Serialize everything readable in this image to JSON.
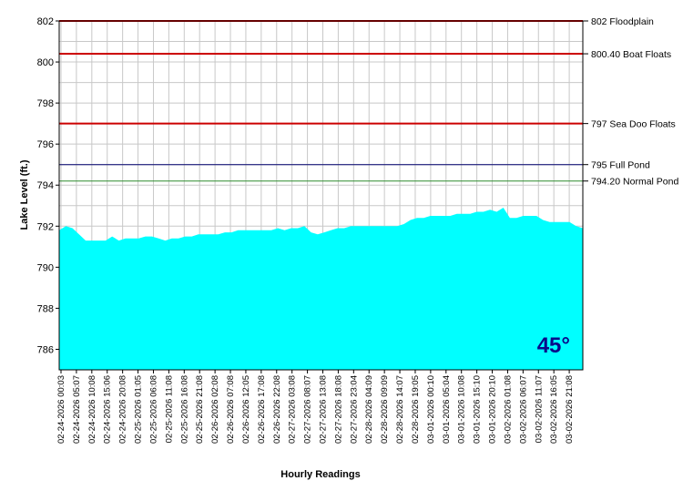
{
  "chart_data": {
    "type": "area",
    "xlabel": "Hourly Readings",
    "ylabel": "Lake Level (ft.)",
    "ylim": [
      785,
      802
    ],
    "yticks": [
      786,
      788,
      790,
      792,
      794,
      796,
      798,
      800,
      802
    ],
    "grid": true,
    "x_tick_labels": [
      "02-24-2026 00:03",
      "02-24-2026 05:07",
      "02-24-2026 10:08",
      "02-24-2026 15:06",
      "02-24-2026 20:08",
      "02-25-2026 01:05",
      "02-25-2026 06:08",
      "02-25-2026 11:08",
      "02-25-2026 16:08",
      "02-25-2026 21:08",
      "02-26-2026 02:08",
      "02-26-2026 07:08",
      "02-26-2026 12:05",
      "02-26-2026 17:08",
      "02-26-2026 22:08",
      "02-27-2026 03:08",
      "02-27-2026 08:07",
      "02-27-2026 13:08",
      "02-27-2026 18:08",
      "02-27-2026 23:04",
      "02-28-2026 04:09",
      "02-28-2026 09:09",
      "02-28-2026 14:07",
      "02-28-2026 19:05",
      "03-01-2026 00:10",
      "03-01-2026 05:04",
      "03-01-2026 10:08",
      "03-01-2026 15:10",
      "03-01-2026 20:10",
      "03-02-2026 01:08",
      "03-02-2026 06:07",
      "03-02-2026 11:07",
      "03-02-2026 16:05",
      "03-02-2026 21:08"
    ],
    "series": [
      {
        "values": [
          791.8,
          792.0,
          791.9,
          791.6,
          791.3,
          791.3,
          791.3,
          791.3,
          791.5,
          791.3,
          791.4,
          791.4,
          791.4,
          791.5,
          791.5,
          791.4,
          791.3,
          791.4,
          791.4,
          791.5,
          791.5,
          791.6,
          791.6,
          791.6,
          791.6,
          791.7,
          791.7,
          791.8,
          791.8,
          791.8,
          791.8,
          791.8,
          791.8,
          791.9,
          791.8,
          791.9,
          791.9,
          792.0,
          791.7,
          791.6,
          791.7,
          791.8,
          791.9,
          791.9,
          792.0,
          792.0,
          792.0,
          792.0,
          792.0,
          792.0,
          792.0,
          792.0,
          792.1,
          792.3,
          792.4,
          792.4,
          792.5,
          792.5,
          792.5,
          792.5,
          792.6,
          792.6,
          792.6,
          792.7,
          792.7,
          792.8,
          792.7,
          792.9,
          792.4,
          792.4,
          792.5,
          792.5,
          792.5,
          792.3,
          792.2,
          792.2,
          792.2,
          792.2,
          792.0,
          791.9
        ]
      }
    ],
    "reference_lines": [
      {
        "label": "802 Floodplain",
        "value": 802,
        "color": "#cc0000"
      },
      {
        "label": "800.40 Boat Floats",
        "value": 800.4,
        "color": "#cc0000"
      },
      {
        "label": "797 Sea Doo Floats",
        "value": 797,
        "color": "#cc0000"
      },
      {
        "label": "795 Full Pond",
        "value": 795,
        "color": "#00006e"
      },
      {
        "label": "794.20 Normal Pond",
        "value": 794.2,
        "color": "#2e8b2e"
      }
    ],
    "area_color": "#00ffff",
    "annotation": "45°"
  }
}
